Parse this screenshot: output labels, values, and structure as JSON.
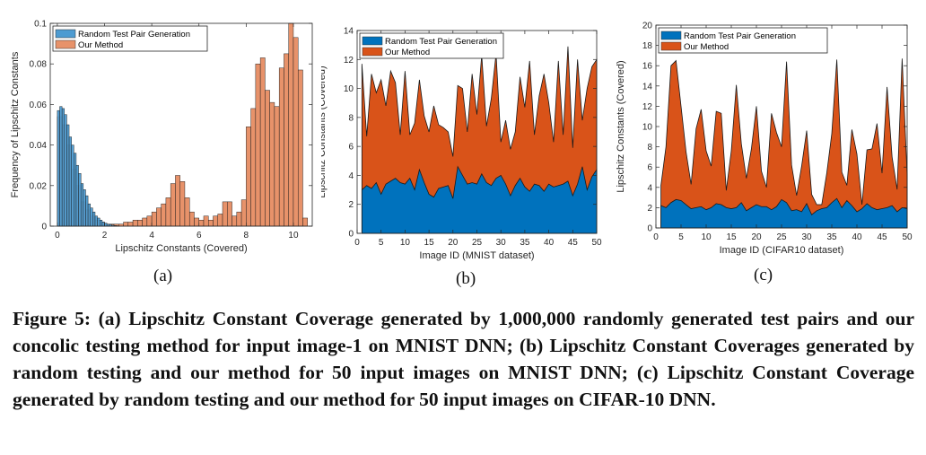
{
  "colors": {
    "random": "#0072bd",
    "ours": "#d95319",
    "hist_random": "#4d9bd1",
    "hist_ours": "#e7926a"
  },
  "caption": "Figure 5: (a) Lipschitz Constant Coverage generated by 1,000,000 randomly generated test pairs and our concolic testing method for input image-1 on MNIST DNN; (b) Lipschitz Constant Coverages generated by random testing and our method for 50 input images on MNIST DNN; (c) Lipschitz Constant Coverage generated by random testing and our method for 50 input images on CIFAR-10 DNN.",
  "chart_data": [
    {
      "panel": "(a)",
      "type": "bar",
      "xlabel": "Lipschitz Constants (Covered)",
      "ylabel": "Frequency of Lipschitz Constants",
      "xlim": [
        -0.3,
        10.8
      ],
      "ylim": [
        0,
        0.1
      ],
      "xticks": [
        0,
        2,
        4,
        6,
        8,
        10
      ],
      "yticks": [
        0,
        0.02,
        0.04,
        0.06,
        0.08,
        0.1
      ],
      "ytick_labels": [
        "0",
        "0.02",
        "0.04",
        "0.06",
        "0.08",
        "0.1"
      ],
      "legend": [
        "Random Test Pair Generation",
        "Our Method"
      ],
      "legend_position": "top-left",
      "series": [
        {
          "name": "Random Test Pair Generation",
          "bin_width": 0.1,
          "x": [
            0.0,
            0.1,
            0.2,
            0.3,
            0.4,
            0.5,
            0.6,
            0.7,
            0.8,
            0.9,
            1.0,
            1.1,
            1.2,
            1.3,
            1.4,
            1.5,
            1.6,
            1.7,
            1.8,
            1.9,
            2.0,
            2.1,
            2.2,
            2.3,
            2.4,
            2.5
          ],
          "values": [
            0.057,
            0.059,
            0.058,
            0.055,
            0.05,
            0.044,
            0.04,
            0.036,
            0.03,
            0.026,
            0.021,
            0.018,
            0.015,
            0.011,
            0.009,
            0.007,
            0.005,
            0.004,
            0.003,
            0.002,
            0.0015,
            0.001,
            0.0008,
            0.0005,
            0.0003,
            0.0002
          ]
        },
        {
          "name": "Our Method",
          "bin_width": 0.2,
          "x": [
            0.0,
            0.2,
            0.4,
            0.6,
            0.8,
            1.0,
            1.2,
            1.4,
            1.6,
            1.8,
            2.0,
            2.2,
            2.4,
            2.6,
            2.8,
            3.0,
            3.2,
            3.4,
            3.6,
            3.8,
            4.0,
            4.2,
            4.4,
            4.6,
            4.8,
            5.0,
            5.2,
            5.4,
            5.6,
            5.8,
            6.0,
            6.2,
            6.4,
            6.6,
            6.8,
            7.0,
            7.2,
            7.4,
            7.6,
            7.8,
            8.0,
            8.2,
            8.4,
            8.6,
            8.8,
            9.0,
            9.2,
            9.4,
            9.6,
            9.8,
            10.0,
            10.2,
            10.4
          ],
          "values": [
            0.054,
            0.05,
            0.04,
            0.028,
            0.02,
            0.012,
            0.008,
            0.005,
            0.003,
            0.002,
            0.001,
            0.001,
            0.001,
            0.001,
            0.002,
            0.002,
            0.003,
            0.003,
            0.004,
            0.005,
            0.007,
            0.009,
            0.011,
            0.014,
            0.021,
            0.025,
            0.022,
            0.014,
            0.007,
            0.004,
            0.003,
            0.005,
            0.003,
            0.005,
            0.006,
            0.012,
            0.012,
            0.005,
            0.007,
            0.013,
            0.049,
            0.058,
            0.08,
            0.083,
            0.067,
            0.061,
            0.059,
            0.078,
            0.085,
            0.1,
            0.093,
            0.077,
            0.004
          ]
        }
      ]
    },
    {
      "panel": "(b)",
      "type": "area",
      "xlabel": "Image ID (MNIST dataset)",
      "ylabel": "Lipschitz Constants (Covered)",
      "xlim": [
        0,
        50
      ],
      "ylim": [
        0,
        14
      ],
      "xticks": [
        0,
        5,
        10,
        15,
        20,
        25,
        30,
        35,
        40,
        45,
        50
      ],
      "yticks": [
        0,
        2,
        4,
        6,
        8,
        10,
        12,
        14
      ],
      "legend": [
        "Random Test Pair Generation",
        "Our Method"
      ],
      "legend_position": "top-left",
      "x": [
        1,
        2,
        3,
        4,
        5,
        6,
        7,
        8,
        9,
        10,
        11,
        12,
        13,
        14,
        15,
        16,
        17,
        18,
        19,
        20,
        21,
        22,
        23,
        24,
        25,
        26,
        27,
        28,
        29,
        30,
        31,
        32,
        33,
        34,
        35,
        36,
        37,
        38,
        39,
        40,
        41,
        42,
        43,
        44,
        45,
        46,
        47,
        48,
        49,
        50
      ],
      "series": [
        {
          "name": "Random Test Pair Generation",
          "stack": "bottom",
          "values": [
            3.0,
            3.3,
            3.1,
            3.5,
            2.7,
            3.4,
            3.6,
            3.8,
            3.5,
            3.4,
            3.8,
            3.0,
            4.4,
            3.5,
            2.7,
            2.5,
            3.1,
            3.2,
            3.3,
            2.4,
            4.6,
            4.0,
            3.4,
            3.5,
            3.4,
            4.1,
            3.5,
            3.3,
            3.8,
            4.0,
            3.4,
            2.6,
            3.3,
            3.8,
            3.2,
            2.9,
            3.4,
            3.3,
            2.9,
            3.4,
            3.2,
            3.3,
            3.4,
            3.6,
            2.6,
            3.4,
            4.6,
            3.0,
            3.9,
            4.4
          ]
        },
        {
          "name": "Our Method",
          "stack": "total",
          "values": [
            11.7,
            6.7,
            11.0,
            9.7,
            10.6,
            8.8,
            11.2,
            10.4,
            6.8,
            11.2,
            6.8,
            7.6,
            10.6,
            8.1,
            7.0,
            8.8,
            7.5,
            7.3,
            7.0,
            5.3,
            10.2,
            10.0,
            7.0,
            11.0,
            8.2,
            12.3,
            7.4,
            9.3,
            12.4,
            6.3,
            7.8,
            5.8,
            7.0,
            10.8,
            8.7,
            11.9,
            6.8,
            9.5,
            11.0,
            9.0,
            6.3,
            11.9,
            6.8,
            12.9,
            5.9,
            12.0,
            7.8,
            10.0,
            11.5,
            12.0
          ]
        }
      ]
    },
    {
      "panel": "(c)",
      "type": "area",
      "xlabel": "Image ID (CIFAR10 dataset)",
      "ylabel": "Lipschitz Constants (Covered)",
      "xlim": [
        0,
        50
      ],
      "ylim": [
        0,
        20
      ],
      "xticks": [
        0,
        5,
        10,
        15,
        20,
        25,
        30,
        35,
        40,
        45,
        50
      ],
      "yticks": [
        0,
        2,
        4,
        6,
        8,
        10,
        12,
        14,
        16,
        18,
        20
      ],
      "legend": [
        "Random Test Pair Generation",
        "Our Method"
      ],
      "legend_position": "top-left",
      "x": [
        1,
        2,
        3,
        4,
        5,
        6,
        7,
        8,
        9,
        10,
        11,
        12,
        13,
        14,
        15,
        16,
        17,
        18,
        19,
        20,
        21,
        22,
        23,
        24,
        25,
        26,
        27,
        28,
        29,
        30,
        31,
        32,
        33,
        34,
        35,
        36,
        37,
        38,
        39,
        40,
        41,
        42,
        43,
        44,
        45,
        46,
        47,
        48,
        49,
        50
      ],
      "series": [
        {
          "name": "Random Test Pair Generation",
          "stack": "bottom",
          "values": [
            2.2,
            2.0,
            2.5,
            2.8,
            2.7,
            2.3,
            1.9,
            2.0,
            2.1,
            1.8,
            2.0,
            2.4,
            2.3,
            2.0,
            1.9,
            2.0,
            2.5,
            1.7,
            2.0,
            2.3,
            2.1,
            2.1,
            1.8,
            2.1,
            2.8,
            2.5,
            1.7,
            1.8,
            1.6,
            2.4,
            1.3,
            1.7,
            1.9,
            2.0,
            2.5,
            2.9,
            2.0,
            2.7,
            2.2,
            1.6,
            1.9,
            2.4,
            2.0,
            1.8,
            1.9,
            2.0,
            2.2,
            1.6,
            2.0,
            1.9
          ]
        },
        {
          "name": "Our Method",
          "stack": "total",
          "values": [
            4.2,
            8.0,
            16.0,
            16.5,
            12.0,
            7.5,
            4.3,
            9.8,
            11.7,
            7.6,
            6.1,
            11.5,
            11.3,
            3.7,
            7.6,
            14.1,
            8.3,
            4.9,
            7.8,
            12.0,
            5.6,
            4.0,
            11.3,
            9.4,
            8.0,
            16.4,
            6.2,
            3.2,
            6.1,
            9.6,
            3.3,
            2.3,
            2.3,
            5.4,
            9.3,
            16.6,
            5.5,
            4.2,
            9.7,
            7.3,
            2.3,
            7.7,
            7.8,
            10.3,
            5.4,
            13.9,
            7.0,
            3.8,
            16.7,
            5.2
          ]
        }
      ]
    }
  ]
}
